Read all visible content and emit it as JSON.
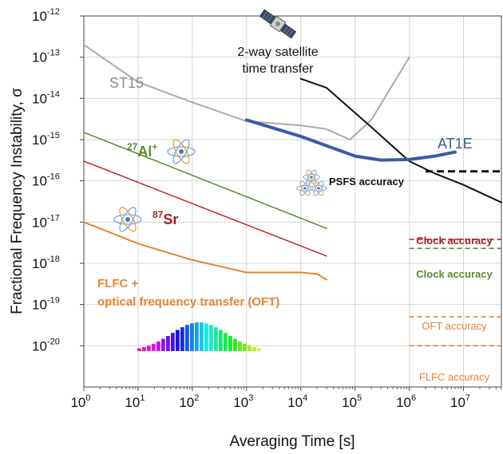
{
  "chart_data": {
    "type": "line",
    "xlabel": "Averaging Time [s]",
    "ylabel": "Fractional Frequency Instability, σ",
    "xscale": "log",
    "yscale": "log",
    "xlim": [
      1,
      50000000
    ],
    "ylim": [
      1e-21,
      1e-12
    ],
    "grid": true,
    "x_ticks": [
      {
        "base": "10",
        "exp": "0"
      },
      {
        "base": "10",
        "exp": "1"
      },
      {
        "base": "10",
        "exp": "2"
      },
      {
        "base": "10",
        "exp": "3"
      },
      {
        "base": "10",
        "exp": "4"
      },
      {
        "base": "10",
        "exp": "5"
      },
      {
        "base": "10",
        "exp": "6"
      },
      {
        "base": "10",
        "exp": "7"
      }
    ],
    "y_ticks": [
      {
        "base": "10",
        "exp": "-12"
      },
      {
        "base": "10",
        "exp": "-13"
      },
      {
        "base": "10",
        "exp": "-14"
      },
      {
        "base": "10",
        "exp": "-15"
      },
      {
        "base": "10",
        "exp": "-16"
      },
      {
        "base": "10",
        "exp": "-17"
      },
      {
        "base": "10",
        "exp": "-18"
      },
      {
        "base": "10",
        "exp": "-19"
      },
      {
        "base": "10",
        "exp": "-20"
      }
    ],
    "series": [
      {
        "name": "ST15",
        "color": "#aaaaaa",
        "width": 2,
        "x": [
          1,
          10,
          100,
          1000,
          10000,
          30000,
          80000,
          200000,
          1000000
        ],
        "y": [
          2e-13,
          2.5e-14,
          8e-15,
          2.8e-15,
          2.2e-15,
          1.8e-15,
          1e-15,
          3e-15,
          1e-13
        ]
      },
      {
        "name": "2-way satellite time transfer",
        "color": "#111111",
        "width": 2,
        "x": [
          10000,
          30000,
          200000,
          1000000,
          3000000,
          10000000,
          50000000
        ],
        "y": [
          3e-14,
          1.8e-14,
          2e-15,
          3e-16,
          1.5e-16,
          8e-17,
          3e-17
        ]
      },
      {
        "name": "AT1E",
        "color": "#3c5aa6",
        "width": 4,
        "x": [
          1000,
          10000,
          100000,
          300000,
          1000000,
          3000000,
          7000000
        ],
        "y": [
          3e-15,
          1.2e-15,
          4e-16,
          3.2e-16,
          3.3e-16,
          4e-16,
          5e-16
        ]
      },
      {
        "name": "27Al+",
        "color": "#5b8a2e",
        "width": 1.5,
        "x": [
          1,
          30000
        ],
        "y": [
          1.5e-15,
          7e-18
        ]
      },
      {
        "name": "87Sr",
        "color": "#c0282d",
        "width": 1.5,
        "x": [
          1,
          30000
        ],
        "y": [
          3e-16,
          1.5e-18
        ]
      },
      {
        "name": "FLFC + optical frequency transfer (OFT)",
        "color": "#e8822f",
        "width": 2,
        "x": [
          1,
          10,
          100,
          1000,
          3000,
          10000,
          20000,
          30000
        ],
        "y": [
          1e-17,
          3e-18,
          1.2e-18,
          6e-19,
          6e-19,
          6e-19,
          5.5e-19,
          4e-19
        ]
      }
    ],
    "reference_levels": [
      {
        "label": "PSFS accuracy",
        "value": 1.7e-16,
        "x_from": 2000000,
        "x_to": 50000000,
        "color": "#111111"
      },
      {
        "label": "Clock accuracy",
        "value": 3.8e-18,
        "x_from": 1000000,
        "x_to": 50000000,
        "color": "#c0282d"
      },
      {
        "label": "Clock accuracy",
        "value": 2.3e-18,
        "x_from": 1000000,
        "x_to": 50000000,
        "color": "#5b8a2e"
      },
      {
        "label": "OFT accuracy",
        "value": 5e-20,
        "x_from": 1000000,
        "x_to": 50000000,
        "color": "#e8822f"
      },
      {
        "label": "FLFC accuracy",
        "value": 1e-20,
        "x_from": 1000000,
        "x_to": 50000000,
        "color": "#e8822f"
      }
    ],
    "annotations": {
      "st15": "ST15",
      "satellite_line1": "2-way satellite",
      "satellite_line2": "time transfer",
      "at1e": "AT1E",
      "al_mass": "27",
      "al_symbol": "Al",
      "al_charge": "+",
      "sr_mass": "87",
      "sr_symbol": "Sr",
      "flfc_line1": "FLFC +",
      "flfc_line2": "optical frequency transfer (OFT)",
      "psfs": "PSFS accuracy",
      "clock_red": "Clock accuracy",
      "clock_green": "Clock accuracy",
      "oft": "OFT accuracy",
      "flfc": "FLFC accuracy"
    },
    "icons": [
      "satellite-icon",
      "atom-icon",
      "atom-cluster-icon",
      "spectrum-comb-icon"
    ]
  }
}
